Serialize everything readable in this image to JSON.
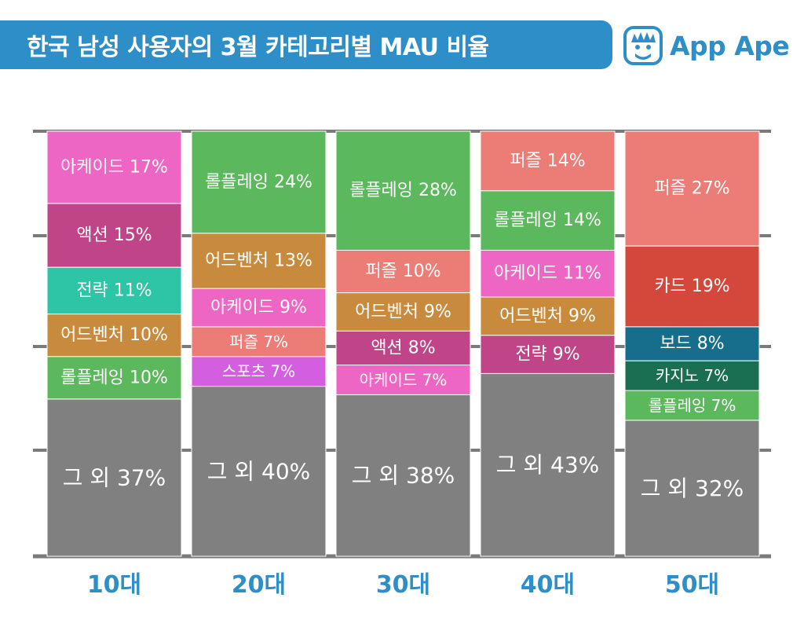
{
  "title": "한국 남성 사용자의 3월 카테고리별 MAU 비율",
  "brand": {
    "name": "App Ape",
    "icon": "ape-face-icon",
    "color": "#2e8ec8"
  },
  "chart_data": {
    "type": "bar",
    "stacked": true,
    "normalized": true,
    "categories": [
      "10대",
      "20대",
      "30대",
      "40대",
      "50대"
    ],
    "ylim": [
      0,
      100
    ],
    "grid": true,
    "xlabel": "",
    "ylabel": "",
    "stacks": [
      {
        "category": "10대",
        "segments": [
          {
            "name": "그 외",
            "value": 37,
            "label": "그 외 37%",
            "color": "#808080"
          },
          {
            "name": "롤플레잉",
            "value": 10,
            "label": "롤플레잉 10%",
            "color": "#5cb85c"
          },
          {
            "name": "어드벤처",
            "value": 10,
            "label": "어드벤처 10%",
            "color": "#c88a3c"
          },
          {
            "name": "전략",
            "value": 11,
            "label": "전략 11%",
            "color": "#2ec4a6"
          },
          {
            "name": "액션",
            "value": 15,
            "label": "액션 15%",
            "color": "#c04488"
          },
          {
            "name": "아케이드",
            "value": 17,
            "label": "아케이드 17%",
            "color": "#ee66c4"
          }
        ]
      },
      {
        "category": "20대",
        "segments": [
          {
            "name": "그 외",
            "value": 40,
            "label": "그 외 40%",
            "color": "#808080"
          },
          {
            "name": "스포츠",
            "value": 7,
            "label": "스포츠 7%",
            "color": "#d35ee0"
          },
          {
            "name": "퍼즐",
            "value": 7,
            "label": "퍼즐 7%",
            "color": "#ec7c76"
          },
          {
            "name": "아케이드",
            "value": 9,
            "label": "아케이드 9%",
            "color": "#ee66c4"
          },
          {
            "name": "어드벤처",
            "value": 13,
            "label": "어드벤처 13%",
            "color": "#c88a3c"
          },
          {
            "name": "롤플레잉",
            "value": 24,
            "label": "롤플레잉 24%",
            "color": "#5cb85c"
          }
        ]
      },
      {
        "category": "30대",
        "segments": [
          {
            "name": "그 외",
            "value": 38,
            "label": "그 외 38%",
            "color": "#808080"
          },
          {
            "name": "아케이드",
            "value": 7,
            "label": "아케이드 7%",
            "color": "#ee66c4"
          },
          {
            "name": "액션",
            "value": 8,
            "label": "액션 8%",
            "color": "#c04488"
          },
          {
            "name": "어드벤처",
            "value": 9,
            "label": "어드벤처 9%",
            "color": "#c88a3c"
          },
          {
            "name": "퍼즐",
            "value": 10,
            "label": "퍼즐 10%",
            "color": "#ec7c76"
          },
          {
            "name": "롤플레잉",
            "value": 28,
            "label": "롤플레잉 28%",
            "color": "#5cb85c"
          }
        ]
      },
      {
        "category": "40대",
        "segments": [
          {
            "name": "그 외",
            "value": 43,
            "label": "그 외 43%",
            "color": "#808080"
          },
          {
            "name": "전략",
            "value": 9,
            "label": "전략 9%",
            "color": "#c04488"
          },
          {
            "name": "어드벤처",
            "value": 9,
            "label": "어드벤처 9%",
            "color": "#c88a3c"
          },
          {
            "name": "아케이드",
            "value": 11,
            "label": "아케이드 11%",
            "color": "#ee66c4"
          },
          {
            "name": "롤플레잉",
            "value": 14,
            "label": "롤플레잉 14%",
            "color": "#5cb85c"
          },
          {
            "name": "퍼즐",
            "value": 14,
            "label": "퍼즐 14%",
            "color": "#ec7c76"
          }
        ]
      },
      {
        "category": "50대",
        "segments": [
          {
            "name": "그 외",
            "value": 32,
            "label": "그 외 32%",
            "color": "#808080"
          },
          {
            "name": "롤플레잉",
            "value": 7,
            "label": "롤플레잉 7%",
            "color": "#5cb85c"
          },
          {
            "name": "카지노",
            "value": 7,
            "label": "카지노 7%",
            "color": "#1a6e52"
          },
          {
            "name": "보드",
            "value": 8,
            "label": "보드 8%",
            "color": "#166e8c"
          },
          {
            "name": "카드",
            "value": 19,
            "label": "카드 19%",
            "color": "#d4483c"
          },
          {
            "name": "퍼즐",
            "value": 27,
            "label": "퍼즐 27%",
            "color": "#ec7c76"
          }
        ]
      }
    ]
  }
}
